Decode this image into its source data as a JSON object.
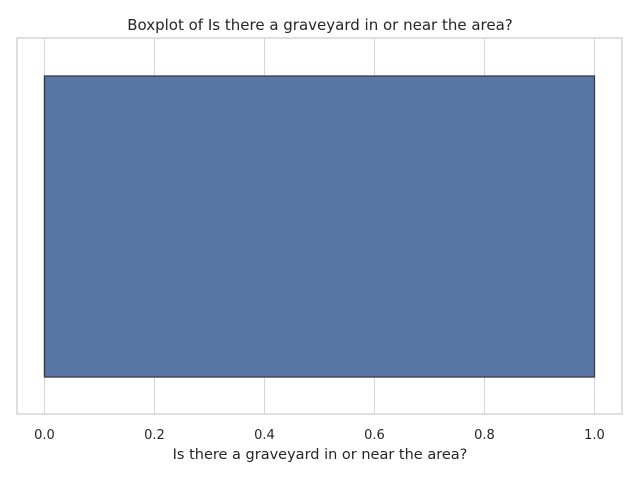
{
  "chart_data": {
    "type": "boxplot",
    "title": "Boxplot of Is there a graveyard in or near the area?",
    "xlabel": "Is there a graveyard in or near the area?",
    "ylabel": "",
    "orientation": "horizontal",
    "xlim": [
      -0.05,
      1.05
    ],
    "xticks": [
      0.0,
      0.2,
      0.4,
      0.6,
      0.8,
      1.0
    ],
    "xtick_labels": [
      "0.0",
      "0.2",
      "0.4",
      "0.6",
      "0.8",
      "1.0"
    ],
    "grid": true,
    "box": {
      "min": 0.0,
      "q1": 0.0,
      "median": 0.0,
      "q3": 1.0,
      "max": 1.0
    },
    "colors": {
      "box_fill": "#5975a4",
      "box_edge": "#3a3a4a",
      "grid": "#d6d6d6",
      "frame": "#cccccc"
    }
  }
}
